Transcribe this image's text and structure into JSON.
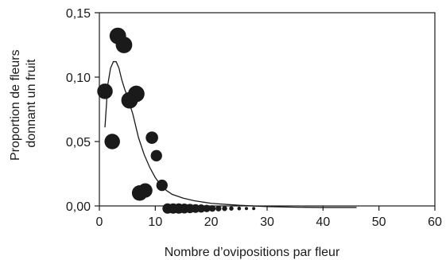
{
  "chart_data": {
    "type": "scatter",
    "title": "",
    "xlabel": "Nombre d’ovipositions par fleur",
    "ylabel_lines": [
      "Proportion de fleurs",
      "donnant un fruit"
    ],
    "xlim": [
      0,
      60
    ],
    "ylim": [
      0,
      0.15
    ],
    "x_ticks": [
      0,
      10,
      20,
      30,
      40,
      50,
      60
    ],
    "x_tick_labels": [
      "0",
      "10",
      "20",
      "30",
      "40",
      "50",
      "60"
    ],
    "y_ticks": [
      0,
      0.05,
      0.1,
      0.15
    ],
    "y_tick_labels": [
      "0,00",
      "0,05",
      "0,10",
      "0,15"
    ],
    "grid": false,
    "points": [
      {
        "x": 1,
        "y": 0.089,
        "size": 0.75
      },
      {
        "x": 2.3,
        "y": 0.05,
        "size": 0.75
      },
      {
        "x": 3.3,
        "y": 0.132,
        "size": 0.8
      },
      {
        "x": 4.4,
        "y": 0.125,
        "size": 0.8
      },
      {
        "x": 5.4,
        "y": 0.082,
        "size": 0.8
      },
      {
        "x": 6.6,
        "y": 0.087,
        "size": 0.8
      },
      {
        "x": 7.2,
        "y": 0.01,
        "size": 0.75
      },
      {
        "x": 8.2,
        "y": 0.012,
        "size": 0.7
      },
      {
        "x": 9.4,
        "y": 0.053,
        "size": 0.6
      },
      {
        "x": 10.2,
        "y": 0.039,
        "size": 0.55
      },
      {
        "x": 11.2,
        "y": 0.016,
        "size": 0.55
      },
      {
        "x": 12.2,
        "y": -0.002,
        "size": 0.5
      },
      {
        "x": 13.2,
        "y": -0.002,
        "size": 0.5
      },
      {
        "x": 14.2,
        "y": -0.002,
        "size": 0.5
      },
      {
        "x": 15.2,
        "y": -0.002,
        "size": 0.48
      },
      {
        "x": 16.2,
        "y": -0.002,
        "size": 0.45
      },
      {
        "x": 17.2,
        "y": -0.002,
        "size": 0.42
      },
      {
        "x": 18.2,
        "y": -0.002,
        "size": 0.4
      },
      {
        "x": 19.2,
        "y": -0.002,
        "size": 0.36
      },
      {
        "x": 20.2,
        "y": -0.002,
        "size": 0.32
      },
      {
        "x": 21.3,
        "y": -0.002,
        "size": 0.28
      },
      {
        "x": 22.4,
        "y": -0.002,
        "size": 0.25
      },
      {
        "x": 23.6,
        "y": -0.002,
        "size": 0.21
      },
      {
        "x": 25.0,
        "y": -0.002,
        "size": 0.18
      },
      {
        "x": 26.3,
        "y": -0.002,
        "size": 0.15
      },
      {
        "x": 27.6,
        "y": -0.002,
        "size": 0.12
      }
    ],
    "fit_curve": {
      "x": [
        1.0,
        1.5,
        2.0,
        2.5,
        3.0,
        3.5,
        4.0,
        4.5,
        5.0,
        6.0,
        7.0,
        8.0,
        9.0,
        10.0,
        11.0,
        12.0,
        13.0,
        15.0,
        17.0,
        20.0,
        25.0,
        30.0,
        35.0,
        40.0,
        46.0
      ],
      "y": [
        0.061,
        0.094,
        0.107,
        0.112,
        0.112,
        0.107,
        0.098,
        0.091,
        0.085,
        0.071,
        0.053,
        0.04,
        0.03,
        0.022,
        0.016,
        0.012,
        0.009,
        0.006,
        0.004,
        0.002,
        0.0005,
        -0.0005,
        -0.001,
        -0.0012,
        -0.0012
      ]
    },
    "colors": {
      "marker": "#1a1a1a",
      "line": "#1a1a1a",
      "axis": "#1a1a1a"
    }
  }
}
